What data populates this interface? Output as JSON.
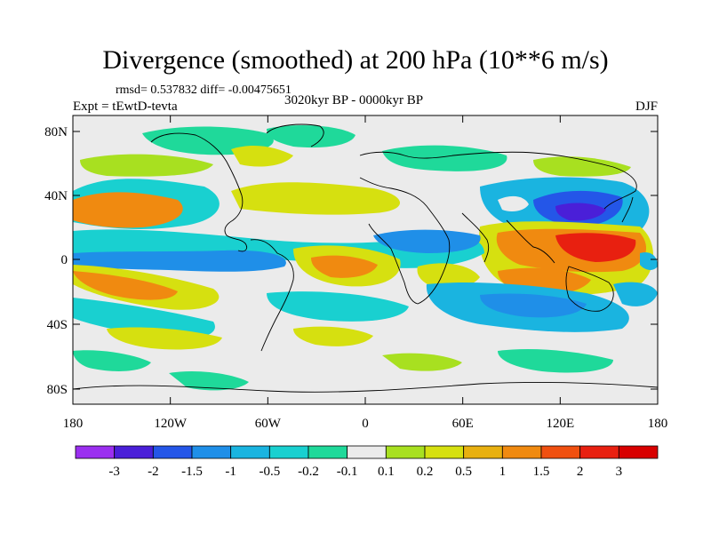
{
  "title": "Divergence (smoothed) at 200 hPa (10**6 m/s)",
  "stats": "rmsd= 0.537832 diff= -0.00475651",
  "experiment": "Expt = tEwtD-tevta",
  "period": "3020kyr BP - 0000kyr BP",
  "season": "DJF",
  "axes": {
    "x_ticks": [
      "180",
      "120W",
      "60W",
      "0",
      "60E",
      "120E",
      "180"
    ],
    "y_ticks": [
      "80N",
      "40N",
      "0",
      "40S",
      "80S"
    ]
  },
  "colorbar": {
    "labels": [
      "-3",
      "-2",
      "-1.5",
      "-1",
      "-0.5",
      "-0.2",
      "-0.1",
      "0.1",
      "0.2",
      "0.5",
      "1",
      "1.5",
      "2",
      "3"
    ],
    "colors": [
      "#9b2ff0",
      "#4a1fd8",
      "#2456e8",
      "#1f8fe8",
      "#1ab4e0",
      "#19d0d0",
      "#1fd99a",
      "#ebebeb",
      "#a8e020",
      "#d6e010",
      "#e8b010",
      "#f08a10",
      "#f05010",
      "#e82010",
      "#d80000"
    ]
  },
  "map_style": {
    "ocean_background": "#ebebeb",
    "coastline_color": "#000000"
  }
}
